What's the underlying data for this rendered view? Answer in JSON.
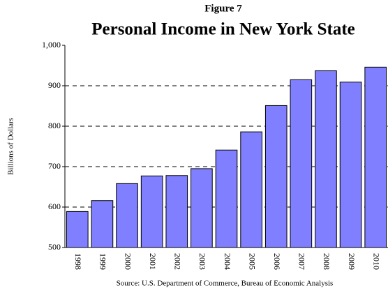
{
  "chart_data": {
    "type": "bar",
    "supertitle": "Figure 7",
    "title": "Personal Income in New York State",
    "ylabel": "Billions of Dollars",
    "source": "Source: U.S. Department of Commerce, Bureau of Economic Analysis",
    "categories": [
      "1998",
      "1999",
      "2000",
      "2001",
      "2002",
      "2003",
      "2004",
      "2005",
      "2006",
      "2007",
      "2008",
      "2009",
      "2010"
    ],
    "values": [
      589,
      616,
      658,
      677,
      678,
      695,
      741,
      786,
      851,
      915,
      937,
      909,
      946
    ],
    "color": "#7f7fff",
    "ylim": [
      500,
      1000
    ],
    "yticks": [
      500,
      600,
      700,
      800,
      900,
      {
        "value": 1000,
        "label": "1,000"
      }
    ],
    "grid": true
  }
}
